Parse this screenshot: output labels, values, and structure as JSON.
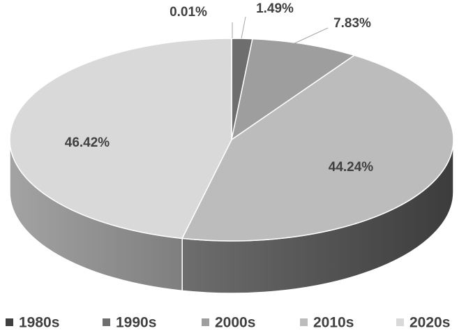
{
  "chart_data": {
    "type": "pie",
    "categories": [
      "1980s",
      "1990s",
      "2000s",
      "2010s",
      "2020s"
    ],
    "values": [
      0.01,
      1.49,
      7.83,
      44.24,
      46.42
    ],
    "value_labels": [
      "0.01%",
      "1.49%",
      "7.83%",
      "44.24%",
      "46.42%"
    ],
    "colors": [
      "#404040",
      "#6e6e6e",
      "#9e9e9e",
      "#bcbcbc",
      "#d9d9d9"
    ],
    "legend": "bottom"
  }
}
